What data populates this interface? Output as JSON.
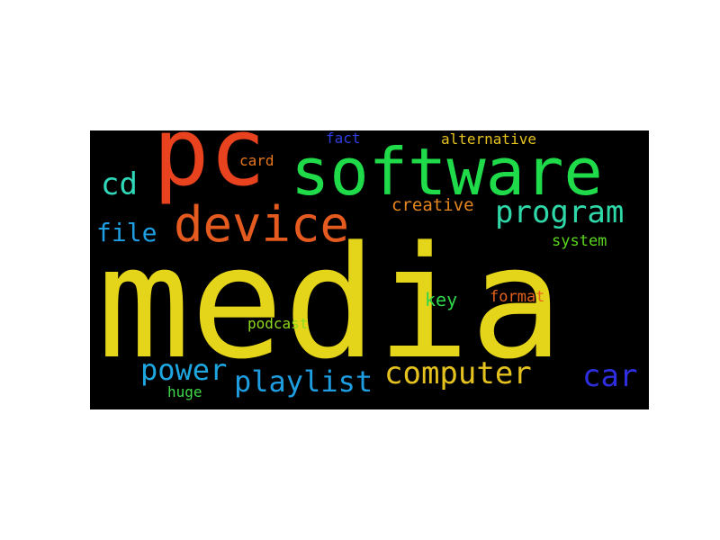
{
  "wordcloud": {
    "background_color": "#000000",
    "words": {
      "media": {
        "text": "media",
        "color": "#e5d51a"
      },
      "software": {
        "text": "software",
        "color": "#1fdb4a"
      },
      "pc": {
        "text": "pc",
        "color": "#e8421e"
      },
      "device": {
        "text": "device",
        "color": "#e55a1e"
      },
      "program": {
        "text": "program",
        "color": "#2fd8a8"
      },
      "computer": {
        "text": "computer",
        "color": "#e5c21e"
      },
      "playlist": {
        "text": "playlist",
        "color": "#1e9ee0"
      },
      "power": {
        "text": "power",
        "color": "#1ea6e0"
      },
      "car": {
        "text": "car",
        "color": "#2e2ee0"
      },
      "cd": {
        "text": "cd",
        "color": "#2fd8b8"
      },
      "file": {
        "text": "file",
        "color": "#1e9ee0"
      },
      "creative": {
        "text": "creative",
        "color": "#e5861e"
      },
      "system": {
        "text": "system",
        "color": "#5ad81e"
      },
      "key": {
        "text": "key",
        "color": "#2ed84a"
      },
      "format": {
        "text": "format",
        "color": "#e5621e"
      },
      "podcast": {
        "text": "podcast",
        "color": "#8ed81e"
      },
      "card": {
        "text": "card",
        "color": "#e5761e"
      },
      "fact": {
        "text": "fact",
        "color": "#2e3ee0"
      },
      "alternative": {
        "text": "alternative",
        "color": "#e5c21e"
      },
      "huge": {
        "text": "huge",
        "color": "#3ed84a"
      }
    }
  }
}
